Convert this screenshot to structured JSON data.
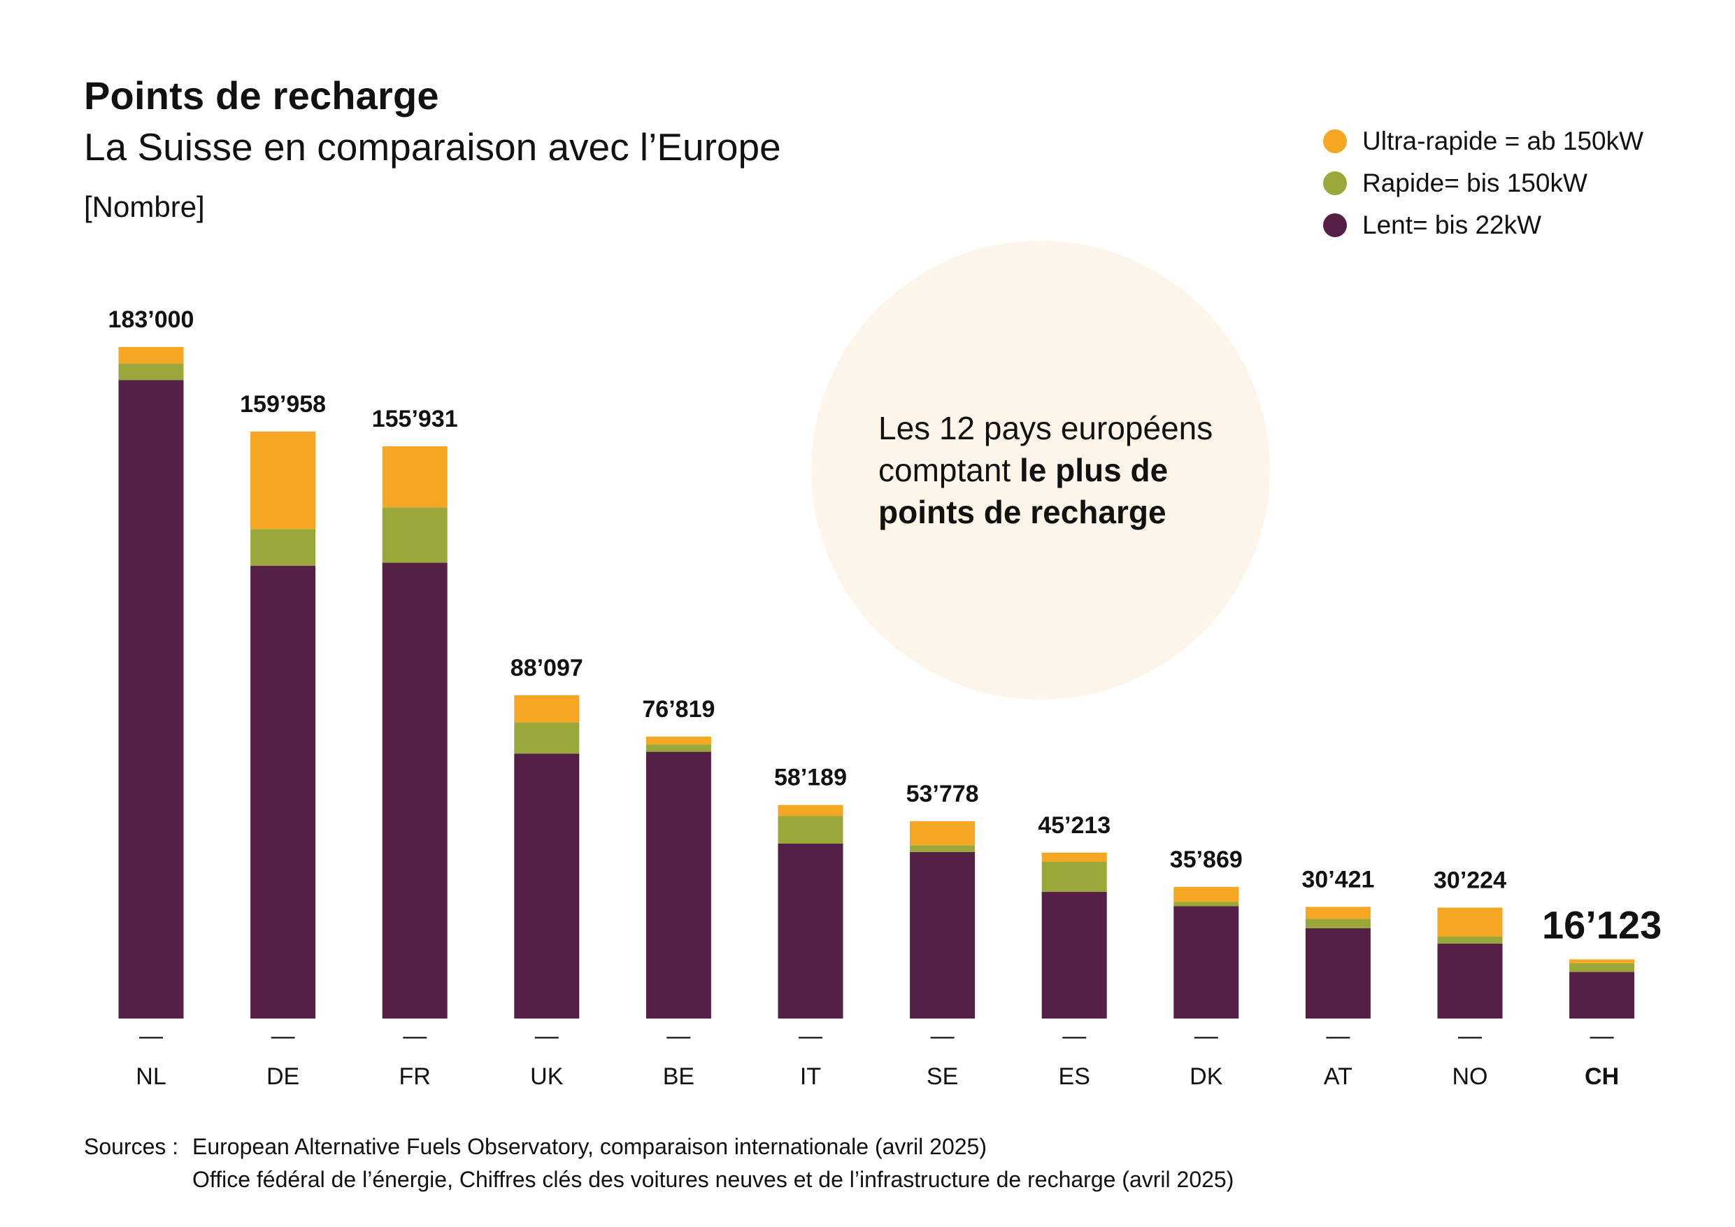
{
  "title": "Points de recharge",
  "subtitle": "La Suisse en comparaison avec l’Europe",
  "unit": "[Nombre]",
  "legend": [
    {
      "label": "Ultra-rapide = ab 150kW",
      "color": "#f5a623"
    },
    {
      "label": "Rapide= bis 150kW",
      "color": "#9aa83a"
    },
    {
      "label": "Lent= bis 22kW",
      "color": "#561f45"
    }
  ],
  "callout": {
    "line1": "Les 12 pays européens",
    "line2_plain": "comptant ",
    "line2_bold": "le plus de",
    "line3_bold": "points de recharge"
  },
  "chart_data": {
    "type": "bar",
    "stacked": true,
    "title": "Points de recharge",
    "ylabel": "[Nombre]",
    "ylim": [
      0,
      183000
    ],
    "tick_mark": "—",
    "highlight": "CH",
    "categories": [
      "NL",
      "DE",
      "FR",
      "UK",
      "BE",
      "IT",
      "SE",
      "ES",
      "DK",
      "AT",
      "NO",
      "CH"
    ],
    "total_labels": [
      "183’000",
      "159’958",
      "155’931",
      "88’097",
      "76’819",
      "58’189",
      "53’778",
      "45’213",
      "35’869",
      "30’421",
      "30’224",
      "16’123"
    ],
    "series": [
      {
        "name": "Lent= bis 22kW",
        "color": "#561f45",
        "values": [
          174000,
          123400,
          124200,
          72200,
          72700,
          47700,
          45400,
          34500,
          30600,
          24600,
          20400,
          12700
        ]
      },
      {
        "name": "Rapide= bis 150kW",
        "color": "#9aa83a",
        "values": [
          4500,
          10000,
          15100,
          8500,
          2000,
          7500,
          1800,
          8200,
          1200,
          2600,
          1900,
          2400
        ]
      },
      {
        "name": "Ultra-rapide = ab 150kW",
        "color": "#f5a623",
        "values": [
          4500,
          26558,
          16631,
          7397,
          2119,
          2989,
          6578,
          2513,
          4069,
          3221,
          7924,
          1023
        ]
      }
    ]
  },
  "sources": {
    "label": "Sources :",
    "lines": [
      "European Alternative Fuels Observatory, comparaison internationale (avril 2025)",
      "Office fédéral de l’énergie, Chiffres clés des voitures neuves et de l’infrastructure de recharge (avril 2025)"
    ]
  }
}
